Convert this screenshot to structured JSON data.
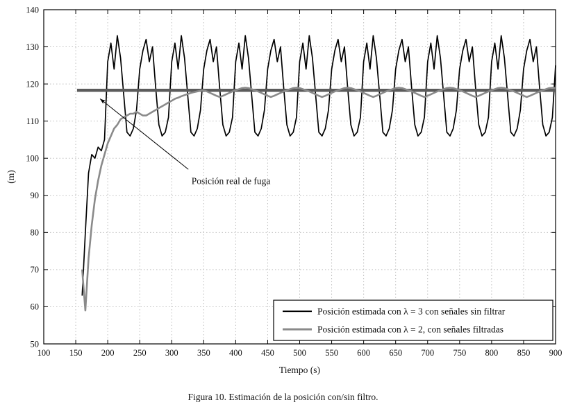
{
  "caption": "Figura 10. Estimación de la posición con/sin filtro.",
  "chart_data": {
    "type": "line",
    "title": "",
    "xlabel": "Tiempo (s)",
    "ylabel": "(m)",
    "xlim": [
      100,
      900
    ],
    "ylim": [
      50,
      140
    ],
    "xticks": [
      100,
      150,
      200,
      250,
      300,
      350,
      400,
      450,
      500,
      550,
      600,
      650,
      700,
      750,
      800,
      850,
      900
    ],
    "yticks": [
      50,
      60,
      70,
      80,
      90,
      100,
      110,
      120,
      130,
      140
    ],
    "grid": "dotted",
    "grid_color": "#bdbdbd",
    "legend_position": "bottom-right",
    "reference_line": {
      "label": "Posición real de fuga",
      "y": 118.3,
      "x_start": 152,
      "x_end": 900,
      "color": "#5c5c5c",
      "width": 4.5
    },
    "annotation": {
      "text": "Posición real de fuga",
      "text_xy": [
        331,
        93
      ],
      "arrow_from": [
        326,
        97
      ],
      "arrow_to": [
        188,
        116
      ]
    },
    "series": [
      {
        "id": "series-unfiltered",
        "name": "Posición estimada con λ = 3 con señales sin filtrar",
        "color": "#000000",
        "width": 1.7,
        "x_start": 160,
        "dx": 5,
        "y": [
          63,
          80,
          96,
          101,
          100,
          103,
          102,
          105,
          126,
          131,
          124,
          133,
          127,
          117,
          107,
          106,
          108,
          113,
          124,
          129,
          132,
          126,
          130,
          119,
          109,
          106,
          107,
          111,
          126,
          131,
          124,
          133,
          127,
          117,
          107,
          106,
          108,
          113,
          124,
          129,
          132,
          126,
          130,
          119,
          109,
          106,
          107,
          111,
          126,
          131,
          124,
          133,
          127,
          117,
          107,
          106,
          108,
          113,
          124,
          129,
          132,
          126,
          130,
          119,
          109,
          106,
          107,
          111,
          126,
          131,
          124,
          133,
          127,
          117,
          107,
          106,
          108,
          113,
          124,
          129,
          132,
          126,
          130,
          119,
          109,
          106,
          107,
          111,
          126,
          131,
          124,
          133,
          127,
          117,
          107,
          106,
          108,
          113,
          124,
          129,
          132,
          126,
          130,
          119,
          109,
          106,
          107,
          111,
          126,
          131,
          124,
          133,
          127,
          117,
          107,
          106,
          108,
          113,
          124,
          129,
          132,
          126,
          130,
          119,
          109,
          106,
          107,
          111,
          126,
          131,
          124,
          133,
          127,
          117,
          107,
          106,
          108,
          113,
          124,
          129,
          132,
          126,
          130,
          119,
          109,
          106,
          107,
          111,
          125
        ]
      },
      {
        "id": "series-filtered",
        "name": "Posición estimada con λ = 2, con señales filtradas",
        "color": "#8a8a8a",
        "width": 2.6,
        "x_start": 160,
        "dx": 5,
        "y": [
          70,
          59,
          73,
          82,
          89,
          94,
          98,
          101,
          104,
          106,
          108,
          109,
          110.5,
          111,
          111.5,
          112,
          112,
          112.5,
          112,
          111.5,
          111.5,
          112,
          112.5,
          113,
          113.5,
          114,
          114.5,
          115,
          115.5,
          116,
          116.3,
          116.7,
          117,
          117.3,
          117.6,
          117.8,
          118,
          118.2,
          118.3,
          118,
          117.6,
          117.2,
          116.8,
          116.5,
          116.8,
          117.2,
          117.6,
          118,
          118.3,
          118.6,
          118.9,
          119,
          118.9,
          118.6,
          118.3,
          118,
          117.6,
          117.2,
          116.8,
          116.5,
          116.8,
          117.2,
          117.6,
          118,
          118.3,
          118.6,
          118.9,
          119,
          118.9,
          118.6,
          118.3,
          118,
          117.6,
          117.2,
          116.8,
          116.5,
          116.8,
          117.2,
          117.6,
          118,
          118.3,
          118.6,
          118.9,
          119,
          118.9,
          118.6,
          118.3,
          118,
          117.6,
          117.2,
          116.8,
          116.5,
          116.8,
          117.2,
          117.6,
          118,
          118.3,
          118.6,
          118.9,
          119,
          118.9,
          118.6,
          118.3,
          118,
          117.6,
          117.2,
          116.8,
          116.5,
          116.8,
          117.2,
          117.6,
          118,
          118.3,
          118.6,
          118.9,
          119,
          118.9,
          118.6,
          118.3,
          118,
          117.6,
          117.2,
          116.8,
          116.5,
          116.8,
          117.2,
          117.6,
          118,
          118.3,
          118.6,
          118.9,
          119,
          118.9,
          118.6,
          118.3,
          118,
          117.6,
          117.2,
          116.8,
          116.5,
          116.8,
          117.2,
          117.6,
          118,
          118.3,
          118.6,
          118.9,
          119,
          118.9
        ]
      }
    ]
  }
}
